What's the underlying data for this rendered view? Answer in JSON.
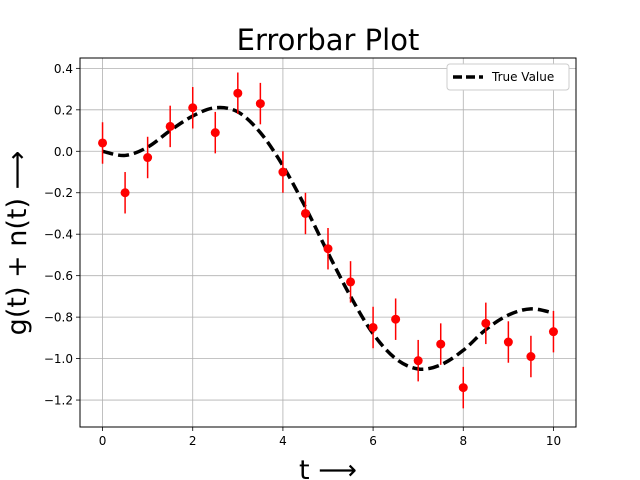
{
  "chart_data": {
    "type": "scatter",
    "title": "Errorbar Plot",
    "xlabel": "t  ⟶",
    "ylabel": "g(t) + n(t)  ⟶",
    "xlim": [
      -0.5,
      10.5
    ],
    "ylim": [
      -1.33,
      0.45
    ],
    "xticks": [
      0,
      2,
      4,
      6,
      8,
      10
    ],
    "xtick_labels": [
      "0",
      "2",
      "4",
      "6",
      "8",
      "10"
    ],
    "yticks": [
      0.4,
      0.2,
      0.0,
      -0.2,
      -0.4,
      -0.6,
      -0.8,
      -1.0,
      -1.2
    ],
    "ytick_labels": [
      "0.4",
      "0.2",
      "0.0",
      "−0.2",
      "−0.4",
      "−0.6",
      "−0.8",
      "−1.0",
      "−1.2"
    ],
    "grid": true,
    "legend_position": "top-right",
    "series": [
      {
        "name": "True Value",
        "type": "line",
        "style": "dashed",
        "color": "#000000",
        "x": [
          0,
          0.5,
          1,
          1.5,
          2,
          2.5,
          3,
          3.5,
          4,
          4.5,
          5,
          5.5,
          6,
          6.5,
          7,
          7.5,
          8,
          8.5,
          9,
          9.5,
          10
        ],
        "y": [
          0.0,
          -0.02,
          0.02,
          0.1,
          0.17,
          0.21,
          0.19,
          0.09,
          -0.07,
          -0.27,
          -0.49,
          -0.7,
          -0.88,
          -1.0,
          -1.05,
          -1.03,
          -0.96,
          -0.86,
          -0.79,
          -0.76,
          -0.78
        ]
      },
      {
        "name": "",
        "type": "errorbar",
        "color": "#ff0000",
        "x": [
          0,
          0.5,
          1,
          1.5,
          2,
          2.5,
          3,
          3.5,
          4,
          4.5,
          5,
          5.5,
          6,
          6.5,
          7,
          7.5,
          8,
          8.5,
          9,
          9.5,
          10
        ],
        "y": [
          0.04,
          -0.2,
          -0.03,
          0.12,
          0.21,
          0.09,
          0.28,
          0.23,
          -0.1,
          -0.3,
          -0.47,
          -0.63,
          -0.85,
          -0.81,
          -1.01,
          -0.93,
          -1.14,
          -0.83,
          -0.92,
          -0.99,
          -0.87
        ],
        "yerr": 0.1
      }
    ]
  }
}
